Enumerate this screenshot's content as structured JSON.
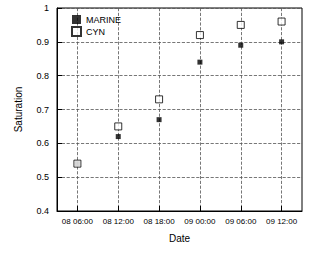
{
  "chart_data": {
    "type": "scatter",
    "x_label": "Date",
    "y_label": "Saturation",
    "categories": [
      "08 06:00",
      "08 12:00",
      "08 18:00",
      "09 00:00",
      "09 06:00",
      "09 12:00"
    ],
    "series": [
      {
        "name": "MARINE",
        "color": "#000000",
        "marker": "filled_square",
        "values": [
          0.54,
          0.62,
          0.67,
          0.84,
          0.89,
          0.9
        ]
      },
      {
        "name": "CYN",
        "color": "#000000",
        "marker": "open_square",
        "values": [
          0.54,
          0.65,
          0.73,
          0.92,
          0.95,
          0.96
        ]
      }
    ],
    "ylim": [
      0.4,
      1
    ],
    "yticks": [
      0.4,
      0.5,
      0.6,
      0.7,
      0.8,
      0.9,
      1
    ],
    "grid": true,
    "legend": "top-left"
  }
}
